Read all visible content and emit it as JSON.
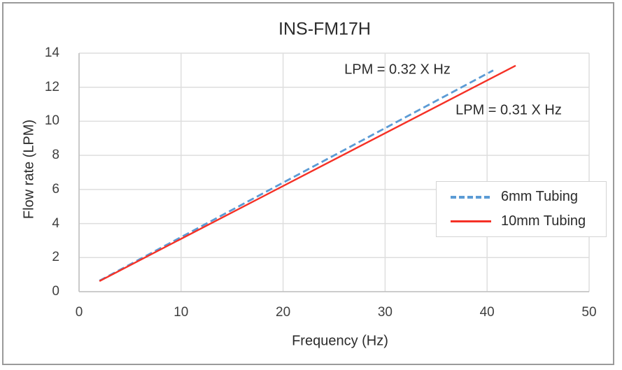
{
  "window": {
    "background": "#ffffff",
    "frame_border_color": "#9a9a9a"
  },
  "chart_data": {
    "type": "line",
    "title": "INS-FM17H",
    "xlabel": "Frequency (Hz)",
    "ylabel": "Flow rate (LPM)",
    "xlim": [
      0,
      50
    ],
    "ylim": [
      0,
      14
    ],
    "x_ticks": [
      0,
      10,
      20,
      30,
      40,
      50
    ],
    "y_ticks": [
      0,
      2,
      4,
      6,
      8,
      10,
      12,
      14
    ],
    "grid": true,
    "colors": {
      "gridline": "#dedede",
      "axis": "#c4c4c4",
      "tick_text": "#3f3f3f"
    },
    "legend": {
      "position": "middle-right",
      "border": true
    },
    "series": [
      {
        "name": "6mm Tubing",
        "color": "#5b9bd5",
        "line_style": "dashed",
        "slope": 0.32,
        "equation_label": "LPM = 0.32 X Hz",
        "x": [
          2,
          40.6
        ],
        "points": [
          [
            2,
            0.64
          ],
          [
            40.6,
            12.99
          ]
        ]
      },
      {
        "name": "10mm Tubing",
        "color": "#f53126",
        "line_style": "solid",
        "slope": 0.31,
        "equation_label": "LPM = 0.31 X Hz",
        "x": [
          2,
          42.8
        ],
        "points": [
          [
            2,
            0.62
          ],
          [
            42.8,
            13.27
          ]
        ]
      }
    ]
  }
}
